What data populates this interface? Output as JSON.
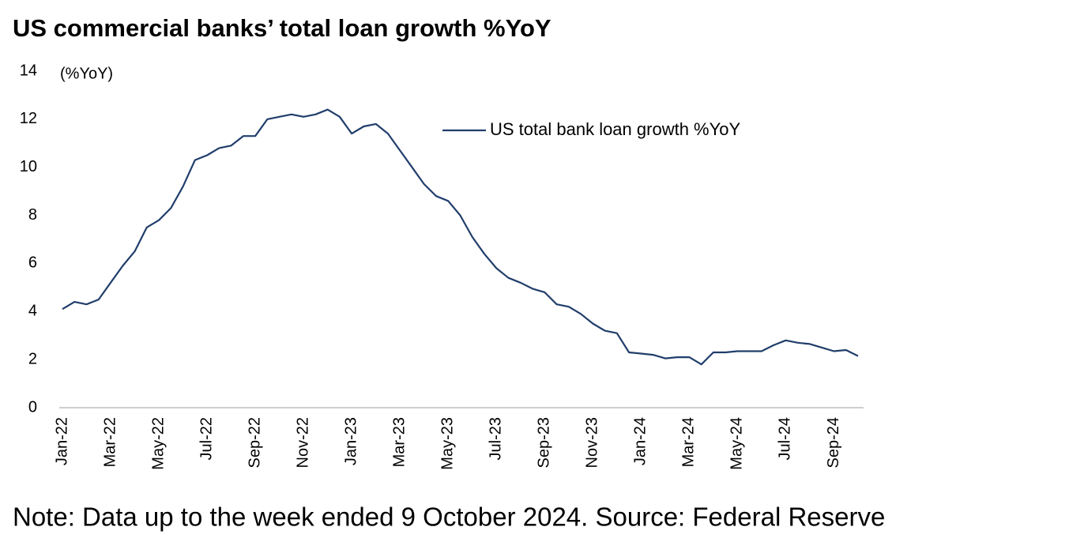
{
  "chart_data": {
    "type": "line",
    "title": "US commercial banks’ total loan growth %YoY",
    "y_axis_label": "(%YoY)",
    "note": "Note: Data up to the week ended 9 October 2024. Source: Federal Reserve",
    "categories": [
      "Jan-22",
      null,
      null,
      null,
      "Mar-22",
      null,
      null,
      null,
      "May-22",
      null,
      null,
      null,
      "Jul-22",
      null,
      null,
      null,
      "Sep-22",
      null,
      null,
      null,
      "Nov-22",
      null,
      null,
      null,
      "Jan-23",
      null,
      null,
      null,
      "Mar-23",
      null,
      null,
      null,
      "May-23",
      null,
      null,
      null,
      "Jul-23",
      null,
      null,
      null,
      "Sep-23",
      null,
      null,
      null,
      "Nov-23",
      null,
      null,
      null,
      "Jan-24",
      null,
      null,
      null,
      "Mar-24",
      null,
      null,
      null,
      "May-24",
      null,
      null,
      null,
      "Jul-24",
      null,
      null,
      null,
      "Sep-24",
      null,
      null
    ],
    "series": [
      {
        "name": "US total bank loan growth %YoY",
        "color": "#213e6b",
        "values": [
          4.1,
          4.4,
          4.3,
          4.5,
          5.2,
          5.9,
          6.5,
          7.5,
          7.8,
          8.3,
          9.2,
          10.3,
          10.5,
          10.8,
          10.9,
          11.3,
          11.3,
          12.0,
          12.1,
          12.2,
          12.1,
          12.2,
          12.4,
          12.1,
          11.4,
          11.7,
          11.8,
          11.4,
          10.7,
          10.0,
          9.3,
          8.8,
          8.6,
          8.0,
          7.1,
          6.4,
          5.8,
          5.4,
          5.2,
          4.95,
          4.8,
          4.3,
          4.2,
          3.9,
          3.5,
          3.2,
          3.1,
          2.3,
          2.25,
          2.2,
          2.05,
          2.1,
          2.1,
          1.8,
          2.3,
          2.3,
          2.35,
          2.35,
          2.35,
          2.6,
          2.8,
          2.7,
          2.65,
          2.5,
          2.35,
          2.4,
          2.15
        ]
      }
    ],
    "ylim": [
      0,
      14
    ],
    "yticks": [
      0,
      2,
      4,
      6,
      8,
      10,
      12,
      14
    ],
    "grid": false,
    "legend": "upper center"
  }
}
